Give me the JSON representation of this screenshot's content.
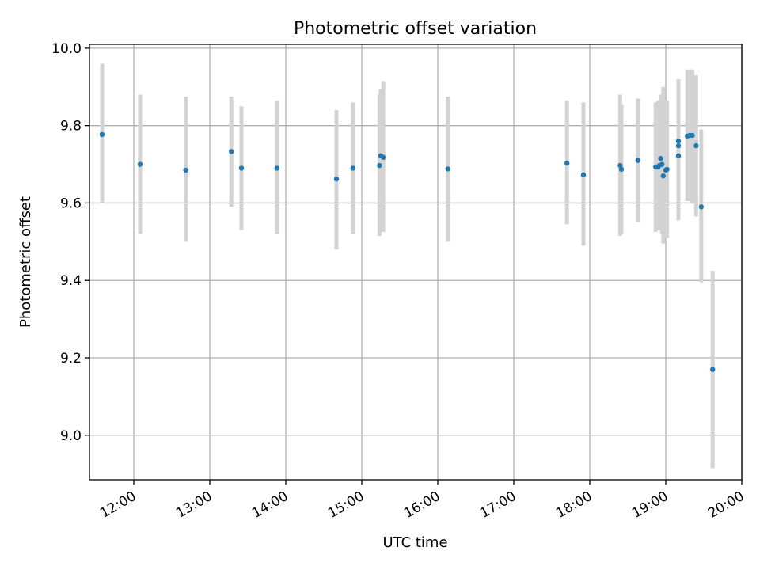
{
  "chart_data": {
    "type": "scatter",
    "title": "Photometric offset variation",
    "xlabel": "UTC time",
    "ylabel": "Photometric offset",
    "x_is_time": true,
    "xlim": [
      "11:25",
      "20:00"
    ],
    "ylim": [
      8.885,
      10.01
    ],
    "x_ticks": [
      "12:00",
      "13:00",
      "14:00",
      "15:00",
      "16:00",
      "17:00",
      "18:00",
      "19:00",
      "20:00"
    ],
    "y_ticks": [
      "9.0",
      "9.2",
      "9.4",
      "9.6",
      "9.8",
      "10.0"
    ],
    "grid": true,
    "marker_color": "#1f77b4",
    "errorbar_color": "#d3d3d3",
    "points": [
      {
        "t": "11:35",
        "y": 9.777,
        "lo": 9.6,
        "hi": 9.96
      },
      {
        "t": "12:05",
        "y": 9.7,
        "lo": 9.52,
        "hi": 9.88
      },
      {
        "t": "12:41",
        "y": 9.685,
        "lo": 9.5,
        "hi": 9.875
      },
      {
        "t": "13:17",
        "y": 9.733,
        "lo": 9.59,
        "hi": 9.875
      },
      {
        "t": "13:25",
        "y": 9.69,
        "lo": 9.53,
        "hi": 9.85
      },
      {
        "t": "13:53",
        "y": 9.69,
        "lo": 9.52,
        "hi": 9.865
      },
      {
        "t": "14:40",
        "y": 9.662,
        "lo": 9.48,
        "hi": 9.84
      },
      {
        "t": "14:53",
        "y": 9.69,
        "lo": 9.52,
        "hi": 9.86
      },
      {
        "t": "15:14",
        "y": 9.697,
        "lo": 9.515,
        "hi": 9.88
      },
      {
        "t": "15:15",
        "y": 9.722,
        "lo": 9.53,
        "hi": 9.895
      },
      {
        "t": "15:17",
        "y": 9.718,
        "lo": 9.525,
        "hi": 9.915
      },
      {
        "t": "16:08",
        "y": 9.688,
        "lo": 9.5,
        "hi": 9.875
      },
      {
        "t": "17:42",
        "y": 9.703,
        "lo": 9.545,
        "hi": 9.865
      },
      {
        "t": "17:55",
        "y": 9.673,
        "lo": 9.49,
        "hi": 9.86
      },
      {
        "t": "18:24",
        "y": 9.697,
        "lo": 9.515,
        "hi": 9.88
      },
      {
        "t": "18:25",
        "y": 9.687,
        "lo": 9.52,
        "hi": 9.855
      },
      {
        "t": "18:38",
        "y": 9.71,
        "lo": 9.55,
        "hi": 9.87
      },
      {
        "t": "18:52",
        "y": 9.693,
        "lo": 9.525,
        "hi": 9.86
      },
      {
        "t": "18:54",
        "y": 9.693,
        "lo": 9.53,
        "hi": 9.865
      },
      {
        "t": "18:55",
        "y": 9.697,
        "lo": 9.53,
        "hi": 9.865
      },
      {
        "t": "18:56",
        "y": 9.715,
        "lo": 9.54,
        "hi": 9.88
      },
      {
        "t": "18:57",
        "y": 9.7,
        "lo": 9.52,
        "hi": 9.87
      },
      {
        "t": "18:58",
        "y": 9.67,
        "lo": 9.495,
        "hi": 9.9
      },
      {
        "t": "19:00",
        "y": 9.685,
        "lo": 9.51,
        "hi": 9.865
      },
      {
        "t": "19:01",
        "y": 9.687,
        "lo": 9.51,
        "hi": 9.865
      },
      {
        "t": "19:10",
        "y": 9.76,
        "lo": 9.56,
        "hi": 9.92
      },
      {
        "t": "19:10",
        "y": 9.748,
        "lo": 9.57,
        "hi": 9.91
      },
      {
        "t": "19:10",
        "y": 9.722,
        "lo": 9.555,
        "hi": 9.905
      },
      {
        "t": "19:17",
        "y": 9.773,
        "lo": 9.605,
        "hi": 9.945
      },
      {
        "t": "19:19",
        "y": 9.775,
        "lo": 9.605,
        "hi": 9.945
      },
      {
        "t": "19:21",
        "y": 9.775,
        "lo": 9.6,
        "hi": 9.945
      },
      {
        "t": "19:24",
        "y": 9.748,
        "lo": 9.565,
        "hi": 9.93
      },
      {
        "t": "19:28",
        "y": 9.59,
        "lo": 9.395,
        "hi": 9.79
      },
      {
        "t": "19:37",
        "y": 9.17,
        "lo": 8.915,
        "hi": 9.425
      }
    ]
  }
}
